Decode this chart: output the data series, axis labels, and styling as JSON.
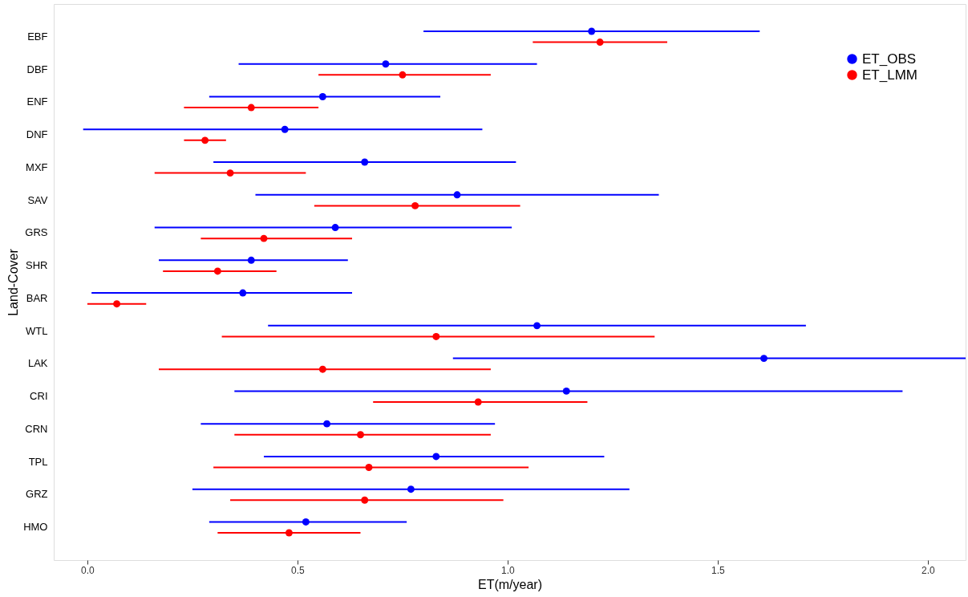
{
  "chart_data": {
    "type": "scatter",
    "orientation": "horizontal",
    "xlabel": "ET(m/year)",
    "ylabel": "Land-Cover",
    "categories": [
      "EBF",
      "DBF",
      "ENF",
      "DNF",
      "MXF",
      "SAV",
      "GRS",
      "SHR",
      "BAR",
      "WTL",
      "LAK",
      "CRI",
      "CRN",
      "TPL",
      "GRZ",
      "HMO"
    ],
    "series": [
      {
        "name": "ET_OBS",
        "color": "#0000ff",
        "values": [
          1.2,
          0.71,
          0.56,
          0.47,
          0.66,
          0.88,
          0.59,
          0.39,
          0.37,
          1.07,
          1.61,
          1.14,
          0.57,
          0.83,
          0.77,
          0.52
        ],
        "errors": [
          [
            0.8,
            1.6
          ],
          [
            0.36,
            1.07
          ],
          [
            0.29,
            0.84
          ],
          [
            -0.01,
            0.94
          ],
          [
            0.3,
            1.02
          ],
          [
            0.4,
            1.36
          ],
          [
            0.16,
            1.01
          ],
          [
            0.17,
            0.62
          ],
          [
            0.01,
            0.63
          ],
          [
            0.43,
            1.71
          ],
          [
            0.87,
            2.09
          ],
          [
            0.35,
            1.94
          ],
          [
            0.27,
            0.97
          ],
          [
            0.42,
            1.23
          ],
          [
            0.25,
            1.29
          ],
          [
            0.29,
            0.76
          ]
        ]
      },
      {
        "name": "ET_LMM",
        "color": "#ff0000",
        "values": [
          1.22,
          0.75,
          0.39,
          0.28,
          0.34,
          0.78,
          0.42,
          0.31,
          0.07,
          0.83,
          0.56,
          0.93,
          0.65,
          0.67,
          0.66,
          0.48
        ],
        "errors": [
          [
            1.06,
            1.38
          ],
          [
            0.55,
            0.96
          ],
          [
            0.23,
            0.55
          ],
          [
            0.23,
            0.33
          ],
          [
            0.16,
            0.52
          ],
          [
            0.54,
            1.03
          ],
          [
            0.27,
            0.63
          ],
          [
            0.18,
            0.45
          ],
          [
            0.0,
            0.14
          ],
          [
            0.32,
            1.35
          ],
          [
            0.17,
            0.96
          ],
          [
            0.68,
            1.19
          ],
          [
            0.35,
            0.96
          ],
          [
            0.3,
            1.05
          ],
          [
            0.34,
            0.99
          ],
          [
            0.31,
            0.65
          ]
        ]
      }
    ],
    "xlim": [
      -0.08,
      2.09
    ],
    "xticks": [
      {
        "value": 0,
        "label": "0.0"
      },
      {
        "value": 0.5,
        "label": "0.5"
      },
      {
        "value": 1,
        "label": "1.0"
      },
      {
        "value": 1.5,
        "label": "1.5"
      },
      {
        "value": 2,
        "label": "2.0"
      }
    ],
    "marker": "circle",
    "legend": "top right",
    "grid": false
  }
}
